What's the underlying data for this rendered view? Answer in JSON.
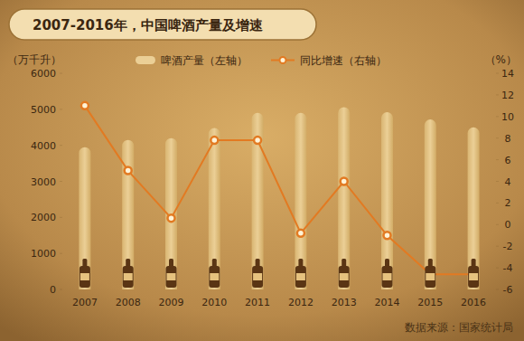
{
  "chart_data": {
    "type": "bar",
    "title": "2007-2016年，中国啤酒产量及增速",
    "ylabel": "（万千升）",
    "y2label": "（%）",
    "source": "数据来源：国家统计局",
    "categories": [
      "2007",
      "2008",
      "2009",
      "2010",
      "2011",
      "2012",
      "2013",
      "2014",
      "2015",
      "2016"
    ],
    "series": [
      {
        "name": "啤酒产量（左轴）",
        "type": "bar",
        "color": "#ebcf96",
        "values": [
          3950,
          4150,
          4200,
          4480,
          4900,
          4900,
          5060,
          4920,
          4720,
          4500
        ]
      },
      {
        "name": "同比增速（右轴）",
        "type": "line",
        "axis": "y2",
        "color": "#e27a22",
        "marker": "circle",
        "values": [
          11.0,
          5.0,
          0.6,
          7.8,
          7.8,
          -0.8,
          4.0,
          -1.0,
          -4.6,
          -4.6
        ]
      }
    ],
    "ylim": [
      0,
      6000
    ],
    "yticks": [
      0,
      1000,
      2000,
      3000,
      4000,
      5000,
      6000
    ],
    "y2lim": [
      -6,
      14
    ],
    "y2ticks": [
      -6,
      -4,
      -2,
      0,
      2,
      4,
      6,
      8,
      10,
      12,
      14
    ],
    "grid": false,
    "legend": "top"
  }
}
